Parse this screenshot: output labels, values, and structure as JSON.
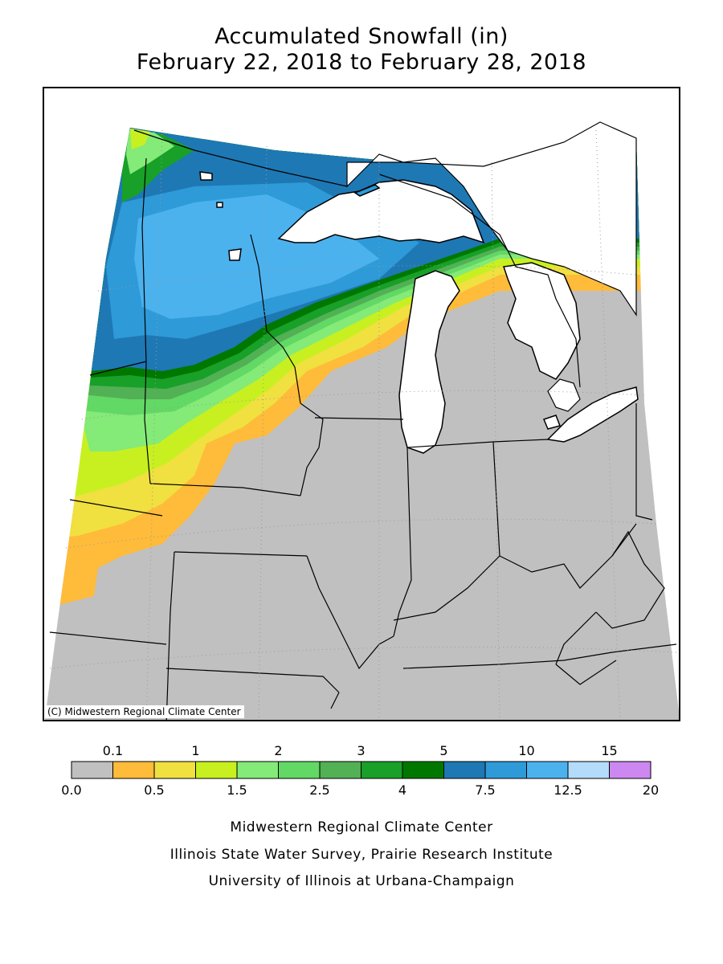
{
  "title": {
    "line1": "Accumulated Snowfall (in)",
    "line2": "February 22, 2018 to February 28, 2018"
  },
  "map": {
    "copyright": "(C) Midwestern Regional Climate Center",
    "land_color": "#c0c0c0",
    "water_color": "#ffffff",
    "border_color": "#000000"
  },
  "legend": {
    "top_labels": [
      "0.1",
      "1",
      "2",
      "3",
      "5",
      "10",
      "15"
    ],
    "bottom_labels": [
      "0.0",
      "0.5",
      "1.5",
      "2.5",
      "4",
      "7.5",
      "12.5",
      "20"
    ],
    "colors": [
      "#c0c0c0",
      "#ffbb3a",
      "#f0e040",
      "#c8f020",
      "#84ea78",
      "#62d865",
      "#52b055",
      "#18a028",
      "#007800",
      "#1e78b4",
      "#2e9ad8",
      "#4bb2ee",
      "#b4dcfa",
      "#cc88f0"
    ]
  },
  "footer": {
    "line1": "Midwestern Regional Climate Center",
    "line2": "Illinois State Water Survey, Prairie Research Institute",
    "line3": "University of Illinois at Urbana-Champaign"
  }
}
